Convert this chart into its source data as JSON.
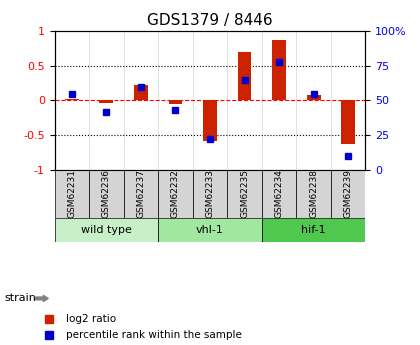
{
  "title": "GDS1379 / 8446",
  "samples": [
    "GSM62231",
    "GSM62236",
    "GSM62237",
    "GSM62232",
    "GSM62233",
    "GSM62235",
    "GSM62234",
    "GSM62238",
    "GSM62239"
  ],
  "log2_ratio": [
    0.02,
    -0.03,
    0.22,
    -0.05,
    -0.58,
    0.7,
    0.87,
    0.08,
    -0.62
  ],
  "percentile_rank": [
    55,
    42,
    60,
    43,
    22,
    65,
    78,
    55,
    10
  ],
  "groups": [
    {
      "label": "wild type",
      "start": 0,
      "end": 3,
      "color": "#c8f0c8"
    },
    {
      "label": "vhl-1",
      "start": 3,
      "end": 6,
      "color": "#a0e8a0"
    },
    {
      "label": "hif-1",
      "start": 6,
      "end": 9,
      "color": "#50c850"
    }
  ],
  "bar_color_red": "#cc2200",
  "bar_color_blue": "#0000cc",
  "ylim_left": [
    -1,
    1
  ],
  "ylim_right": [
    0,
    100
  ],
  "yticks_left": [
    -1,
    -0.5,
    0,
    0.5,
    1
  ],
  "yticks_left_labels": [
    "-1",
    "-0.5",
    "0",
    "0.5",
    "1"
  ],
  "yticks_right": [
    0,
    25,
    50,
    75,
    100
  ],
  "yticks_right_labels": [
    "0",
    "25",
    "50",
    "75",
    "100%"
  ],
  "dotted_lines": [
    0.5,
    -0.5
  ],
  "bg_color": "#ffffff",
  "plot_bg": "#ffffff",
  "strain_label": "strain",
  "legend_red": "log2 ratio",
  "legend_blue": "percentile rank within the sample",
  "sample_bg": "#d4d4d4",
  "bar_width": 0.4
}
